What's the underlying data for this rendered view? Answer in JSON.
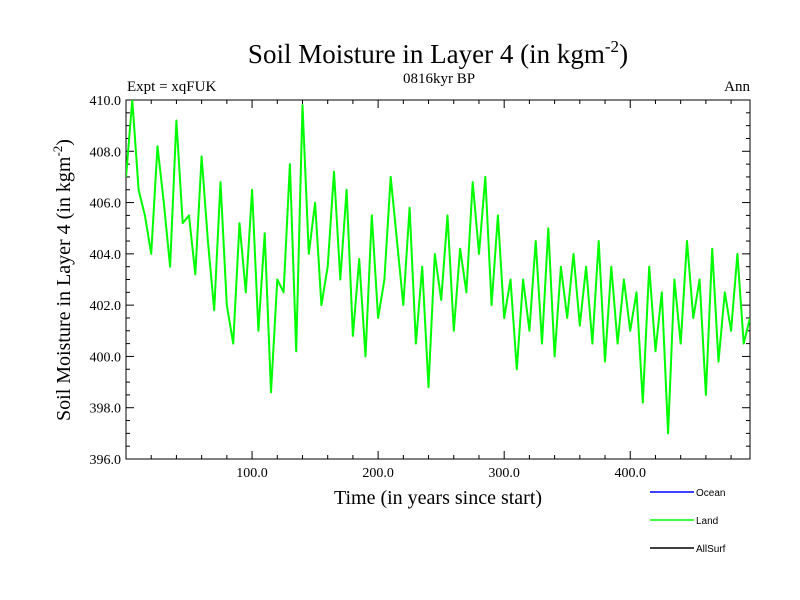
{
  "chart_data": {
    "type": "line",
    "title_main": "Soil Moisture in Layer 4 (in kgm",
    "title_sup": "-2",
    "title_close": ")",
    "subtitle": "0816kyr BP",
    "left_label": "Expt = xqFUK",
    "right_label": "Ann",
    "xlabel": "Time (in years since start)",
    "ylabel_main": "Soil Moisture in Layer 4 (in kgm",
    "ylabel_sup": "-2",
    "ylabel_close": ")",
    "xlim": [
      0,
      495
    ],
    "ylim": [
      396,
      410
    ],
    "x_ticks": [
      100,
      200,
      300,
      400
    ],
    "x_tick_labels": [
      "100.0",
      "200.0",
      "300.0",
      "400.0"
    ],
    "y_ticks": [
      396,
      398,
      400,
      402,
      404,
      406,
      408,
      410
    ],
    "y_tick_labels": [
      "396.0",
      "398.0",
      "400.0",
      "402.0",
      "404.0",
      "406.0",
      "408.0",
      "410.0"
    ],
    "legend": [
      {
        "name": "Ocean",
        "color": "#0000ff"
      },
      {
        "name": "Land",
        "color": "#00ff00"
      },
      {
        "name": "AllSurf",
        "color": "#000000"
      }
    ],
    "series": [
      {
        "name": "Land",
        "color": "#00ff00",
        "x_start": 0,
        "x_step": 5,
        "note": "annual values summarized every 5 years",
        "values": [
          407.0,
          410.0,
          406.5,
          405.5,
          404.0,
          408.2,
          406.0,
          403.5,
          409.2,
          405.2,
          405.5,
          403.2,
          407.8,
          404.5,
          401.8,
          406.8,
          402.0,
          400.5,
          405.2,
          402.5,
          406.5,
          401.0,
          404.8,
          398.6,
          403.0,
          402.5,
          407.5,
          400.2,
          409.8,
          404.0,
          406.0,
          402.0,
          403.5,
          407.2,
          403.0,
          406.5,
          400.8,
          403.8,
          400.0,
          405.5,
          401.5,
          403.0,
          407.0,
          404.5,
          402.0,
          405.8,
          400.5,
          403.5,
          398.8,
          404.0,
          402.2,
          405.5,
          401.0,
          404.2,
          402.5,
          406.8,
          404.0,
          407.0,
          402.0,
          405.5,
          401.5,
          403.0,
          399.5,
          403.0,
          401.0,
          404.5,
          400.5,
          405.0,
          400.0,
          403.5,
          401.5,
          404.0,
          401.2,
          403.5,
          400.5,
          404.5,
          399.8,
          403.5,
          400.5,
          403.0,
          401.0,
          402.5,
          398.2,
          403.5,
          400.2,
          402.5,
          397.0,
          403.0,
          400.5,
          404.5,
          401.5,
          403.0,
          398.5,
          404.2,
          399.8,
          402.5,
          401.0,
          404.0,
          400.5,
          401.5
        ]
      }
    ]
  }
}
